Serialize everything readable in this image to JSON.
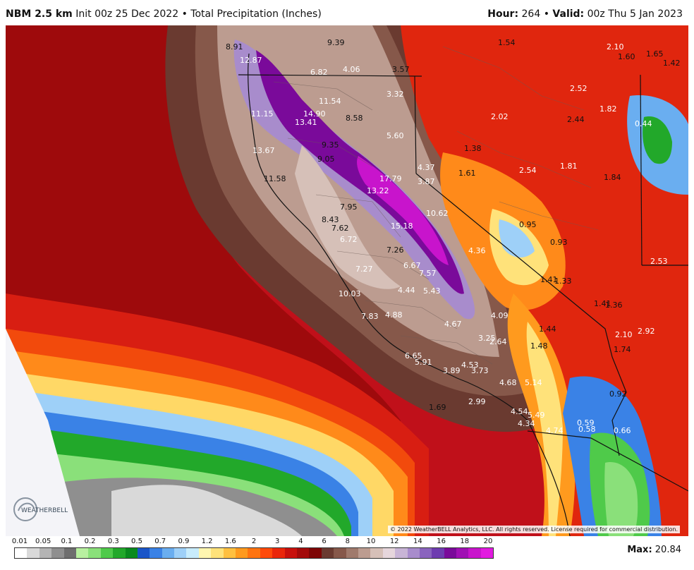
{
  "header": {
    "model": "NBM 2.5 km",
    "init": "Init 00z 25 Dec 2022",
    "separator": "•",
    "field": "Total Precipitation (Inches)",
    "hour_label": "Hour:",
    "hour_value": "264",
    "valid_label": "Valid:",
    "valid_value": "00z Thu 5 Jan 2023"
  },
  "map": {
    "copyright": "© 2022 WeatherBELL Analytics, LLC. All rights reserved. License required for commercial distribution.",
    "logo_text": "WEATHERBELL",
    "labels": [
      {
        "text": "8.91",
        "color": "#111"
      },
      {
        "text": "9.39",
        "color": "#111"
      },
      {
        "text": "12.87",
        "color": "#fff"
      },
      {
        "text": "6.82",
        "color": "#fff"
      },
      {
        "text": "4.06",
        "color": "#fff"
      },
      {
        "text": "3.57",
        "color": "#111"
      },
      {
        "text": "1.54",
        "color": "#111"
      },
      {
        "text": "2.10",
        "color": "#fff"
      },
      {
        "text": "1.60",
        "color": "#111"
      },
      {
        "text": "1.65",
        "color": "#111"
      },
      {
        "text": "1.42",
        "color": "#111"
      },
      {
        "text": "3.32",
        "color": "#fff"
      },
      {
        "text": "11.54",
        "color": "#fff"
      },
      {
        "text": "2.52",
        "color": "#fff"
      },
      {
        "text": "11.15",
        "color": "#fff"
      },
      {
        "text": "14.90",
        "color": "#fff"
      },
      {
        "text": "13.41",
        "color": "#fff"
      },
      {
        "text": "8.58",
        "color": "#111"
      },
      {
        "text": "2.02",
        "color": "#fff"
      },
      {
        "text": "2.44",
        "color": "#111"
      },
      {
        "text": "1.82",
        "color": "#fff"
      },
      {
        "text": "0.44",
        "color": "#fff"
      },
      {
        "text": "5.60",
        "color": "#fff"
      },
      {
        "text": "9.35",
        "color": "#111"
      },
      {
        "text": "1.38",
        "color": "#111"
      },
      {
        "text": "13.67",
        "color": "#fff"
      },
      {
        "text": "9.05",
        "color": "#111"
      },
      {
        "text": "4.37",
        "color": "#fff"
      },
      {
        "text": "1.61",
        "color": "#111"
      },
      {
        "text": "2.54",
        "color": "#fff"
      },
      {
        "text": "1.81",
        "color": "#fff"
      },
      {
        "text": "1.84",
        "color": "#111"
      },
      {
        "text": "11.58",
        "color": "#111"
      },
      {
        "text": "17.79",
        "color": "#fff"
      },
      {
        "text": "3.87",
        "color": "#fff"
      },
      {
        "text": "13.22",
        "color": "#fff"
      },
      {
        "text": "7.95",
        "color": "#111"
      },
      {
        "text": "10.62",
        "color": "#fff"
      },
      {
        "text": "8.43",
        "color": "#111"
      },
      {
        "text": "7.62",
        "color": "#111"
      },
      {
        "text": "15.18",
        "color": "#fff"
      },
      {
        "text": "0.95",
        "color": "#111"
      },
      {
        "text": "0.93",
        "color": "#111"
      },
      {
        "text": "6.72",
        "color": "#fff"
      },
      {
        "text": "7.26",
        "color": "#111"
      },
      {
        "text": "4.36",
        "color": "#fff"
      },
      {
        "text": "2.53",
        "color": "#fff"
      },
      {
        "text": "6.67",
        "color": "#fff"
      },
      {
        "text": "7.27",
        "color": "#fff"
      },
      {
        "text": "7.57",
        "color": "#fff"
      },
      {
        "text": "1.41",
        "color": "#111"
      },
      {
        "text": "1.33",
        "color": "#111"
      },
      {
        "text": "10.03",
        "color": "#fff"
      },
      {
        "text": "4.44",
        "color": "#fff"
      },
      {
        "text": "5.43",
        "color": "#fff"
      },
      {
        "text": "1.41",
        "color": "#111"
      },
      {
        "text": "1.36",
        "color": "#111"
      },
      {
        "text": "7.83",
        "color": "#fff"
      },
      {
        "text": "4.88",
        "color": "#fff"
      },
      {
        "text": "4.09",
        "color": "#fff"
      },
      {
        "text": "4.67",
        "color": "#fff"
      },
      {
        "text": "1.44",
        "color": "#111"
      },
      {
        "text": "2.10",
        "color": "#fff"
      },
      {
        "text": "2.92",
        "color": "#fff"
      },
      {
        "text": "3.25",
        "color": "#fff"
      },
      {
        "text": "2.64",
        "color": "#fff"
      },
      {
        "text": "1.48",
        "color": "#111"
      },
      {
        "text": "1.74",
        "color": "#111"
      },
      {
        "text": "6.65",
        "color": "#fff"
      },
      {
        "text": "5.91",
        "color": "#fff"
      },
      {
        "text": "3.89",
        "color": "#fff"
      },
      {
        "text": "4.53",
        "color": "#fff"
      },
      {
        "text": "3.73",
        "color": "#fff"
      },
      {
        "text": "4.68",
        "color": "#fff"
      },
      {
        "text": "5.14",
        "color": "#fff"
      },
      {
        "text": "0.92",
        "color": "#111"
      },
      {
        "text": "1.69",
        "color": "#111"
      },
      {
        "text": "2.99",
        "color": "#fff"
      },
      {
        "text": "4.54",
        "color": "#fff"
      },
      {
        "text": "5.49",
        "color": "#fff"
      },
      {
        "text": "4.34",
        "color": "#fff"
      },
      {
        "text": "4.74",
        "color": "#fff"
      },
      {
        "text": "0.59",
        "color": "#fff"
      },
      {
        "text": "0.58",
        "color": "#fff"
      },
      {
        "text": "0.66",
        "color": "#fff"
      }
    ]
  },
  "legend": {
    "tick_labels": [
      "0.01",
      "0.05",
      "0.1",
      "0.2",
      "0.3",
      "0.5",
      "0.7",
      "0.9",
      "1.2",
      "1.6",
      "2",
      "3",
      "4",
      "6",
      "8",
      "10",
      "12",
      "14",
      "16",
      "18",
      "20"
    ],
    "colors": [
      "#ffffff",
      "#d9d9d9",
      "#b4b4b4",
      "#8f8f8f",
      "#6e6e6e",
      "#b8f0a0",
      "#8ae07a",
      "#4fca4a",
      "#22a82a",
      "#0a8a1e",
      "#1a55c8",
      "#3a82e6",
      "#6aaef0",
      "#9ed0f8",
      "#c8ecfc",
      "#fff6b0",
      "#ffe27a",
      "#ffc040",
      "#ff9a1e",
      "#ff7410",
      "#ff4a0a",
      "#ea260a",
      "#c8100c",
      "#a30a0a",
      "#7e0606",
      "#6a3a30",
      "#86584a",
      "#a07a6c",
      "#bc9c90",
      "#d6c0b8",
      "#e6d6dc",
      "#c8b4d6",
      "#a88ccc",
      "#8a64be",
      "#6e3cb0",
      "#7a0a9a",
      "#a010b4",
      "#c814cc",
      "#e21ae0"
    ]
  },
  "max": {
    "label": "Max:",
    "value": "20.84"
  }
}
